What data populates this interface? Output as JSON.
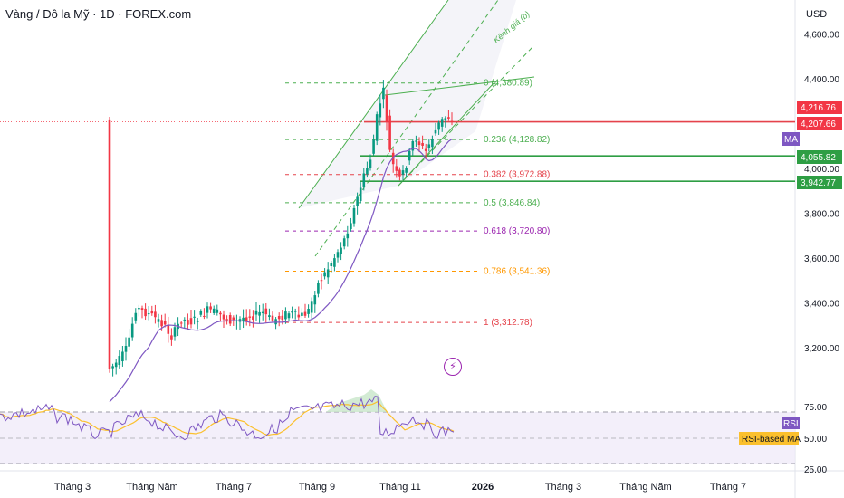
{
  "header": {
    "title": "Vàng / Đô la Mỹ · 1D · FOREX.com",
    "currency": "USD"
  },
  "chart_data": {
    "type": "candlestick",
    "y_ticks": [
      4600,
      4400,
      4000,
      3800,
      3600,
      3400,
      3200
    ],
    "y_tick_labels": [
      "4,600.00",
      "4,400.00",
      "4,000.00",
      "3,800.00",
      "3,600.00",
      "3,400.00",
      "3,200.00"
    ],
    "x_tick_labels": [
      "Tháng 3",
      "Tháng Năm",
      "Tháng 7",
      "Tháng 9",
      "Tháng 11",
      "2026",
      "Tháng 3",
      "Tháng Năm",
      "Tháng 7"
    ],
    "fib_levels": [
      {
        "label": "0 (4,380.89)",
        "price": 4380.89,
        "color": "#4caf50"
      },
      {
        "label": "0.236 (4,128.82)",
        "price": 4128.82,
        "color": "#4caf50"
      },
      {
        "label": "0.382 (3,972.88)",
        "price": 3972.88,
        "color": "#e5434b"
      },
      {
        "label": "0.5 (3,846.84)",
        "price": 3846.84,
        "color": "#4caf50"
      },
      {
        "label": "0.618 (3,720.80)",
        "price": 3720.8,
        "color": "#9c27b0"
      },
      {
        "label": "0.786 (3,541.36)",
        "price": 3541.36,
        "color": "#ff9800"
      },
      {
        "label": "1 (3,312.78)",
        "price": 3312.78,
        "color": "#e5434b"
      }
    ],
    "channel_label": "Kênh giá (b)",
    "price_labels": [
      {
        "text": "4,216.76",
        "price": 4216.76,
        "bg": "#f23645"
      },
      {
        "text": "4,207.66",
        "price": 4207.66,
        "bg": "#f23645"
      },
      {
        "text": "4,055.82",
        "price": 4055.82,
        "bg": "#2e9e44"
      },
      {
        "text": "3,942.77",
        "price": 3942.77,
        "bg": "#2e9e44"
      }
    ],
    "ma_label": "MA",
    "rsi": {
      "ticks": [
        75,
        50,
        25
      ],
      "tick_labels": [
        "75.00",
        "50.00",
        "25.00"
      ],
      "label": "RSI",
      "ma_label": "RSI-based MA"
    },
    "colors": {
      "up": "#089981",
      "down": "#f23645",
      "ma": "#7e57c2",
      "rsi": "#7e57c2",
      "rsi_ma": "#fbc02d"
    }
  }
}
